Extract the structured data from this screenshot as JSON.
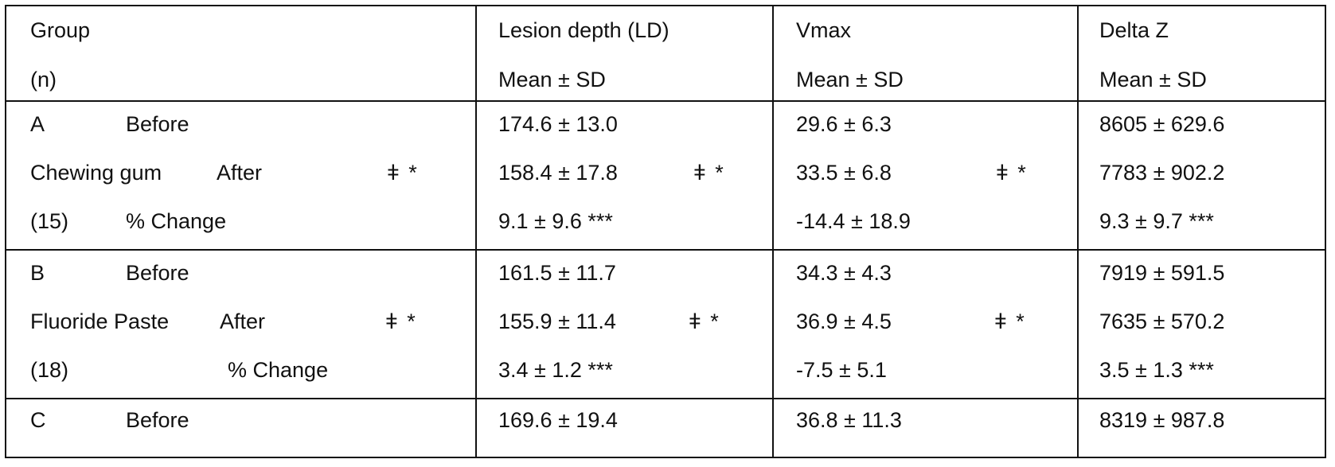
{
  "header": {
    "group_line1": "Group",
    "group_line2": "(n)",
    "ld_line1": "Lesion depth (LD)",
    "ld_line2": "Mean ± SD",
    "vmax_line1": "Vmax",
    "vmax_line2": "Mean ± SD",
    "dz_line1": "Delta Z",
    "dz_line2": "Mean ± SD"
  },
  "groups": [
    {
      "letter": "A",
      "name": "Chewing gum",
      "n": "(15)",
      "before_label": "Before",
      "after_label": "After",
      "change_label": "% Change",
      "after_mark": "ǂ *",
      "ld": {
        "before": "174.6 ± 13.0",
        "after": "158.4 ± 17.8",
        "after_mark": "ǂ *",
        "change": "9.1 ± 9.6 ***"
      },
      "vmax": {
        "before": "29.6 ± 6.3",
        "after": "33.5 ± 6.8",
        "after_mark": "ǂ *",
        "change": "-14.4 ± 18.9"
      },
      "dz": {
        "before": "8605 ± 629.6",
        "after": "7783 ± 902.2",
        "change": "9.3 ± 9.7 ***"
      }
    },
    {
      "letter": "B",
      "name": "Fluoride Paste",
      "n": "(18)",
      "before_label": "Before",
      "after_label": "After",
      "change_label": "% Change",
      "after_mark": "ǂ *",
      "ld": {
        "before": "161.5 ± 11.7",
        "after": "155.9 ± 11.4",
        "after_mark": "ǂ *",
        "change": "3.4 ± 1.2 ***"
      },
      "vmax": {
        "before": "34.3 ± 4.3",
        "after": "36.9 ± 4.5",
        "after_mark": "ǂ *",
        "change": "-7.5 ± 5.1"
      },
      "dz": {
        "before": "7919 ± 591.5",
        "after": "7635 ± 570.2",
        "change": "3.5 ± 1.3 ***"
      }
    },
    {
      "letter": "C",
      "before_label": "Before",
      "ld": {
        "before": "169.6 ± 19.4"
      },
      "vmax": {
        "before": "36.8 ± 11.3"
      },
      "dz": {
        "before": "8319 ± 987.8"
      }
    }
  ]
}
